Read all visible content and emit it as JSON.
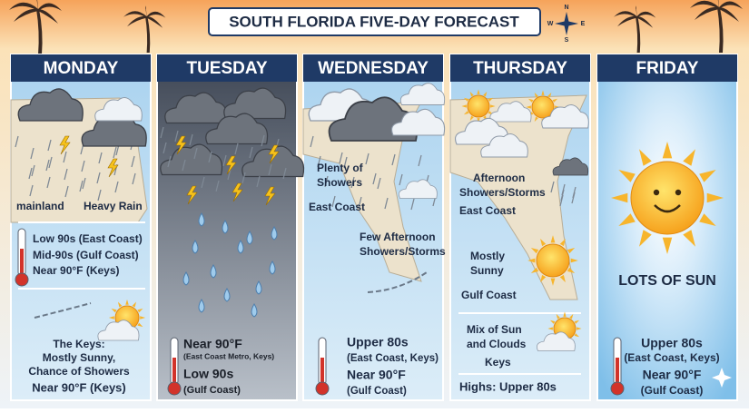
{
  "title": "SOUTH FLORIDA FIVE-DAY FORECAST",
  "compass": [
    "N",
    "E",
    "S",
    "W"
  ],
  "days": [
    {
      "name": "MONDAY",
      "items": [
        "mainland",
        "Heavy Rain",
        "Low 90s (East Coast)",
        "Mid-90s (Gulf Coast)",
        "Near 90°F (Keys)",
        "The Keys:",
        "Mostly Sunny,",
        "Chance of Showers",
        "Near 90°F (Keys)"
      ]
    },
    {
      "name": "TUESDAY",
      "items": [
        "Near 90°F",
        "(East Coast Metro, Keys)",
        "Low 90s",
        "(Gulf Coast)"
      ]
    },
    {
      "name": "WEDNESDAY",
      "items": [
        "Plenty of",
        "Showers",
        "East Coast",
        "Few Afternoon",
        "Showers/Storms",
        "Upper 80s",
        "(East Coast, Keys)",
        "Near 90°F",
        "(Gulf Coast)"
      ]
    },
    {
      "name": "THURSDAY",
      "items": [
        "Afternoon",
        "Showers/Storms",
        "East Coast",
        "Mostly",
        "Sunny",
        "Gulf Coast",
        "Mix of Sun",
        "and Clouds",
        "Keys",
        "Highs: Upper 80s"
      ]
    },
    {
      "name": "FRIDAY",
      "items": [
        "LOTS OF SUN",
        "Upper 80s",
        "(East Coast, Keys)",
        "Near 90°F",
        "(Gulf Coast)"
      ]
    }
  ]
}
